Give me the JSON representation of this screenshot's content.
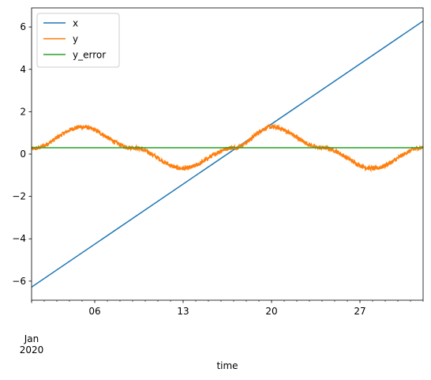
{
  "chart_data": {
    "type": "line",
    "xlabel": "time",
    "ylabel": "",
    "x_start": "2020-01-01",
    "x_end": "2020-02-01",
    "xlim": [
      "2020-01-01",
      "2020-02-01"
    ],
    "ylim": [
      -6.9,
      6.9
    ],
    "x_major_ticks": [
      {
        "date": "2020-01-06",
        "label": "06"
      },
      {
        "date": "2020-01-13",
        "label": "13"
      },
      {
        "date": "2020-01-20",
        "label": "20"
      },
      {
        "date": "2020-01-27",
        "label": "27"
      }
    ],
    "x_corner_label": {
      "month": "Jan",
      "year": "2020"
    },
    "y_ticks": [
      {
        "value": -6,
        "label": "−6"
      },
      {
        "value": -4,
        "label": "−4"
      },
      {
        "value": -2,
        "label": "−2"
      },
      {
        "value": 0,
        "label": "0"
      },
      {
        "value": 2,
        "label": "2"
      },
      {
        "value": 4,
        "label": "4"
      },
      {
        "value": 6,
        "label": "6"
      }
    ],
    "grid": false,
    "legend_position": "top-left",
    "series": [
      {
        "name": "x",
        "color": "#1f77b4",
        "points": [
          [
            "2020-01-01",
            -6.28
          ],
          [
            "2020-02-01",
            6.28
          ]
        ]
      },
      {
        "name": "y",
        "color": "#ff7f0e",
        "description_points": [
          [
            "2020-01-01",
            0.25
          ],
          [
            "2020-01-05",
            1.28
          ],
          [
            "2020-01-09",
            0.3
          ],
          [
            "2020-01-13",
            -0.68
          ],
          [
            "2020-01-17",
            0.3
          ],
          [
            "2020-01-20",
            1.28
          ],
          [
            "2020-01-24",
            0.3
          ],
          [
            "2020-01-28",
            -0.68
          ],
          [
            "2020-02-01",
            0.3
          ]
        ],
        "noise_amplitude": 0.1
      },
      {
        "name": "y_error",
        "color": "#2ca02c",
        "points": [
          [
            "2020-01-01",
            0.3
          ],
          [
            "2020-02-01",
            0.3
          ]
        ]
      }
    ]
  }
}
